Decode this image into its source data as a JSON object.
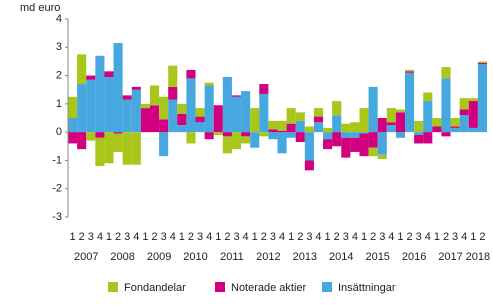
{
  "chart_data": {
    "type": "stacked_bar",
    "y_label": "md euro",
    "categories": [
      "1",
      "2",
      "3",
      "4",
      "1",
      "2",
      "3",
      "4",
      "1",
      "2",
      "3",
      "4",
      "1",
      "2",
      "3",
      "4",
      "1",
      "2",
      "3",
      "4",
      "1",
      "2",
      "3",
      "4",
      "1",
      "2",
      "3",
      "4",
      "1",
      "2",
      "3",
      "4",
      "1",
      "2",
      "3",
      "4",
      "1",
      "2",
      "3",
      "4",
      "1",
      "2",
      "3",
      "4",
      "1",
      "2"
    ],
    "groups": [
      "2007",
      "2008",
      "2009",
      "2010",
      "2011",
      "2012",
      "2013",
      "2014",
      "2015",
      "2016",
      "2017",
      "2018"
    ],
    "series": [
      {
        "name": "Fondandelar",
        "color": "#a9c71b",
        "values": [
          0.75,
          1.05,
          -0.3,
          -1.0,
          -1.1,
          -0.65,
          -1.15,
          -1.15,
          0.15,
          0.7,
          0.8,
          0.75,
          0.35,
          -0.4,
          0.3,
          0.1,
          -0.1,
          -0.6,
          -0.6,
          -0.25,
          0.85,
          -0.15,
          0.3,
          0.35,
          0.55,
          0.3,
          0.2,
          0.3,
          0.15,
          0.5,
          0.3,
          0.35,
          0.85,
          -0.3,
          -0.15,
          0.5,
          0.1,
          0.05,
          0.4,
          0.3,
          0.3,
          0.4,
          0.3,
          0.4,
          0.1,
          0.05
        ]
      },
      {
        "name": "Noterade aktier",
        "color": "#d0007f",
        "values": [
          -0.4,
          -0.6,
          0.15,
          -0.2,
          0.2,
          -0.05,
          0.15,
          0.1,
          0.85,
          0.95,
          0.45,
          0.45,
          0.4,
          0.3,
          0.2,
          -0.25,
          0.95,
          -0.15,
          0.05,
          -0.15,
          0,
          0.35,
          0.1,
          0.05,
          0.3,
          -0.35,
          -0.35,
          0.2,
          -0.35,
          -0.5,
          -0.7,
          -0.5,
          -0.8,
          -0.55,
          0.5,
          0.1,
          0.7,
          0.05,
          -0.3,
          -0.4,
          0.2,
          -0.15,
          0.05,
          0.2,
          0.95,
          0.05
        ]
      },
      {
        "name": "Insättningar",
        "color": "#47a8e0",
        "values": [
          0.5,
          1.7,
          1.85,
          2.7,
          1.95,
          3.15,
          1.15,
          1.5,
          0,
          0,
          -0.85,
          1.15,
          0.25,
          1.9,
          0.35,
          1.65,
          0,
          1.95,
          1.25,
          1.45,
          -0.55,
          1.35,
          -0.25,
          -0.75,
          -0.2,
          0.4,
          -1.0,
          0.35,
          -0.25,
          0.6,
          -0.2,
          -0.2,
          -0.05,
          1.6,
          -0.8,
          0.25,
          -0.2,
          2.1,
          -0.1,
          1.1,
          0,
          1.9,
          0.15,
          0.6,
          0.15,
          2.4
        ]
      }
    ],
    "ylim": [
      -3,
      4
    ],
    "yticks": [
      -3,
      -2,
      -1,
      0,
      1,
      2,
      3,
      4
    ]
  }
}
